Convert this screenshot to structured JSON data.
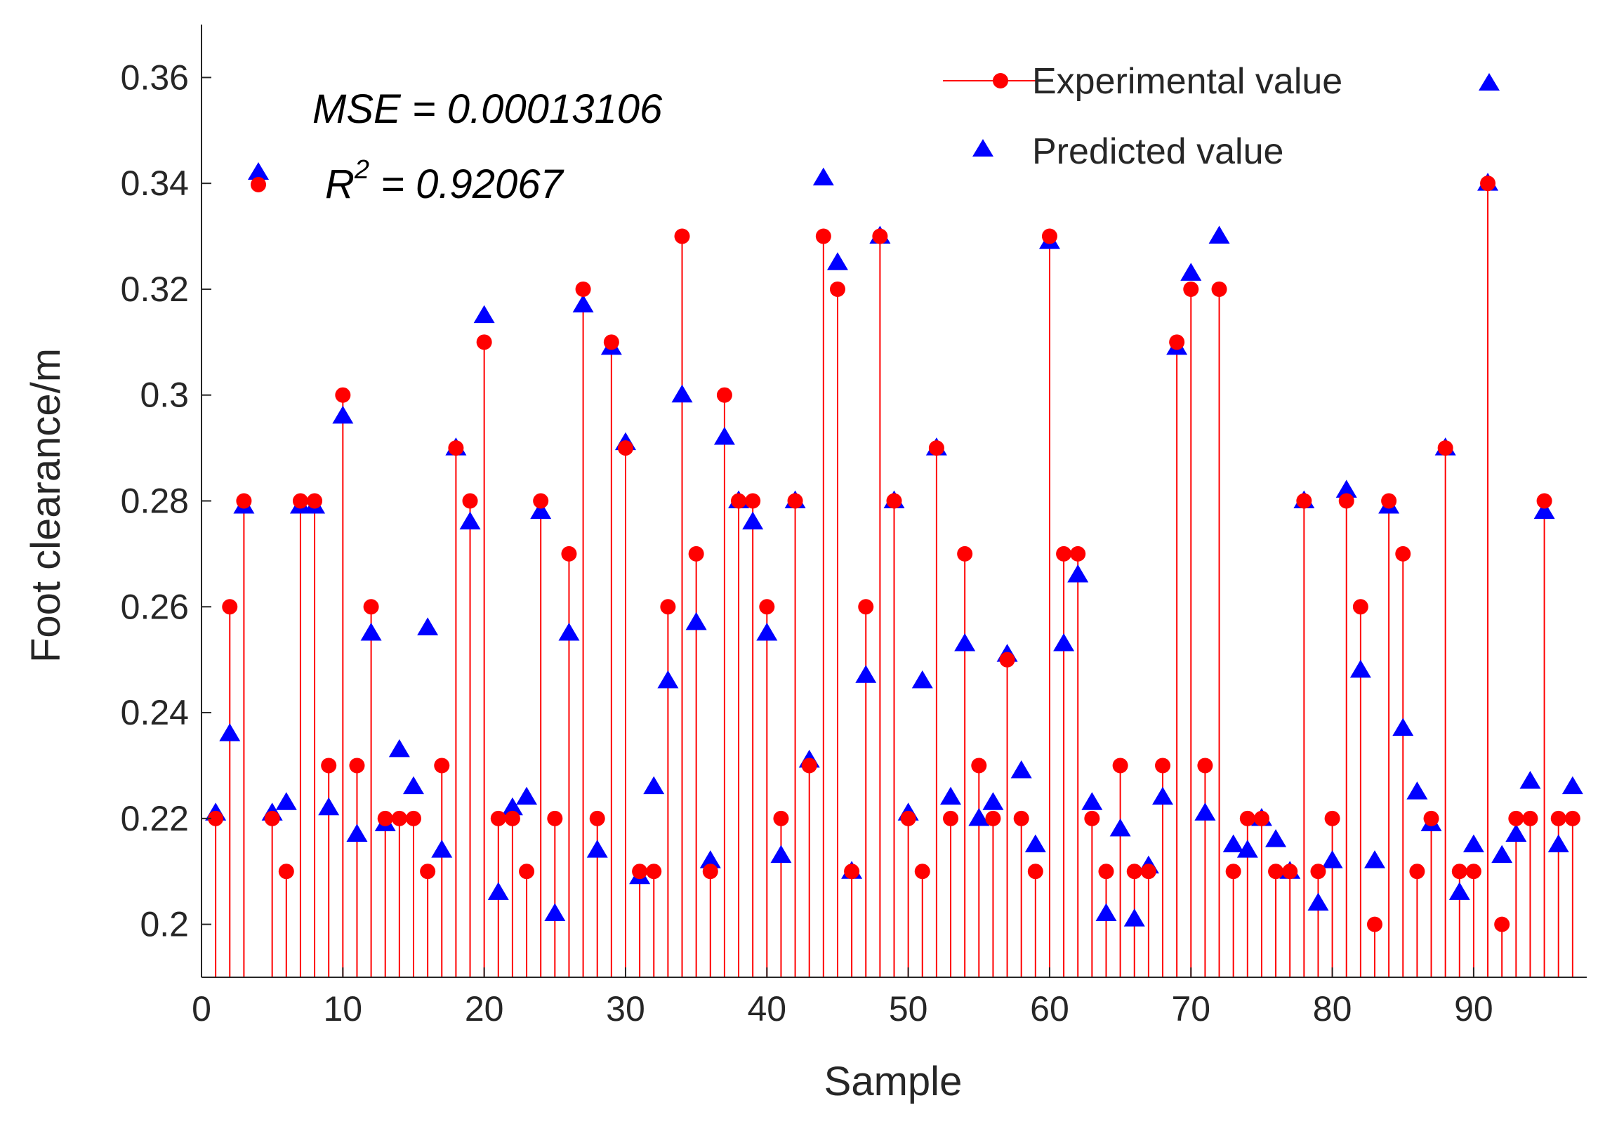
{
  "chart_data": {
    "type": "stem",
    "xlabel": "Sample",
    "ylabel": "Foot clearance/m",
    "xlim": [
      0,
      98
    ],
    "ylim": [
      0.19,
      0.37
    ],
    "xticks": [
      0,
      10,
      20,
      30,
      40,
      50,
      60,
      70,
      80,
      90
    ],
    "xtick_labels": [
      "0",
      "10",
      "20",
      "30",
      "40",
      "50",
      "60",
      "70",
      "80",
      "90"
    ],
    "yticks": [
      0.2,
      0.22,
      0.24,
      0.26,
      0.28,
      0.3,
      0.32,
      0.34,
      0.36
    ],
    "ytick_labels": [
      "0.2",
      "0.22",
      "0.24",
      "0.26",
      "0.28",
      "0.3",
      "0.32",
      "0.34",
      "0.36"
    ],
    "legend": {
      "position": "top-right",
      "entries": [
        {
          "label": "Experimental value",
          "color": "#ff0000",
          "marker": "circle"
        },
        {
          "label": "Predicted value",
          "color": "#0000ff",
          "marker": "triangle"
        }
      ]
    },
    "annotations": {
      "mse": "MSE = 0.00013106",
      "r2_prefix": "R",
      "r2_sup": "2",
      "r2_value": " = 0.92067"
    },
    "series": [
      {
        "name": "Experimental value",
        "style": "stem",
        "color": "#ff0000",
        "x": [
          1,
          2,
          3,
          5,
          6,
          7,
          8,
          9,
          10,
          11,
          12,
          13,
          14,
          15,
          16,
          17,
          18,
          19,
          20,
          21,
          22,
          23,
          24,
          25,
          26,
          27,
          28,
          29,
          30,
          31,
          32,
          33,
          34,
          35,
          36,
          37,
          38,
          39,
          40,
          41,
          42,
          43,
          44,
          45,
          46,
          47,
          48,
          49,
          50,
          51,
          52,
          53,
          54,
          55,
          56,
          57,
          58,
          59,
          60,
          61,
          62,
          63,
          64,
          65,
          66,
          67,
          68,
          69,
          70,
          71,
          72,
          73,
          74,
          75,
          76,
          77,
          78,
          79,
          80,
          81,
          82,
          83,
          84,
          85,
          86,
          87,
          88,
          89,
          90,
          91,
          92,
          93,
          94,
          95,
          96,
          97
        ],
        "y": [
          0.22,
          0.26,
          0.28,
          0.22,
          0.21,
          0.28,
          0.28,
          0.23,
          0.3,
          0.23,
          0.26,
          0.22,
          0.22,
          0.22,
          0.21,
          0.23,
          0.29,
          0.28,
          0.31,
          0.22,
          0.22,
          0.21,
          0.28,
          0.22,
          0.27,
          0.32,
          0.22,
          0.31,
          0.29,
          0.21,
          0.21,
          0.26,
          0.33,
          0.27,
          0.21,
          0.3,
          0.28,
          0.28,
          0.26,
          0.22,
          0.28,
          0.23,
          0.33,
          0.32,
          0.21,
          0.26,
          0.33,
          0.28,
          0.22,
          0.21,
          0.29,
          0.22,
          0.27,
          0.23,
          0.22,
          0.25,
          0.22,
          0.21,
          0.33,
          0.27,
          0.27,
          0.22,
          0.21,
          0.23,
          0.21,
          0.21,
          0.23,
          0.31,
          0.32,
          0.23,
          0.32,
          0.21,
          0.22,
          0.22,
          0.21,
          0.21,
          0.28,
          0.21,
          0.22,
          0.28,
          0.26,
          0.2,
          0.28,
          0.27,
          0.21,
          0.22,
          0.29,
          0.21,
          0.21,
          0.34,
          0.2,
          0.22,
          0.22,
          0.28,
          0.22,
          0.22
        ]
      },
      {
        "name": "Predicted value",
        "style": "marker",
        "color": "#0000ff",
        "x": [
          1,
          2,
          3,
          5,
          6,
          7,
          8,
          9,
          10,
          11,
          12,
          13,
          14,
          15,
          16,
          17,
          18,
          19,
          20,
          21,
          22,
          23,
          24,
          25,
          26,
          27,
          28,
          29,
          30,
          31,
          32,
          33,
          34,
          35,
          36,
          37,
          38,
          39,
          40,
          41,
          42,
          43,
          44,
          45,
          46,
          47,
          48,
          49,
          50,
          51,
          52,
          53,
          54,
          55,
          56,
          57,
          58,
          59,
          60,
          61,
          62,
          63,
          64,
          65,
          66,
          67,
          68,
          69,
          70,
          71,
          72,
          73,
          74,
          75,
          76,
          77,
          78,
          79,
          80,
          81,
          82,
          83,
          84,
          85,
          86,
          87,
          88,
          89,
          90,
          91,
          92,
          93,
          94,
          95,
          96,
          97
        ],
        "y": [
          0.221,
          0.236,
          0.279,
          0.221,
          0.223,
          0.279,
          0.279,
          0.222,
          0.296,
          0.217,
          0.255,
          0.219,
          0.233,
          0.226,
          0.256,
          0.214,
          0.29,
          0.276,
          0.315,
          0.206,
          0.222,
          0.224,
          0.278,
          0.202,
          0.255,
          0.317,
          0.214,
          0.309,
          0.291,
          0.209,
          0.226,
          0.246,
          0.3,
          0.257,
          0.212,
          0.292,
          0.28,
          0.276,
          0.255,
          0.213,
          0.28,
          0.231,
          0.341,
          0.325,
          0.21,
          0.247,
          0.33,
          0.28,
          0.221,
          0.246,
          0.29,
          0.224,
          0.253,
          0.22,
          0.223,
          0.251,
          0.229,
          0.215,
          0.329,
          0.253,
          0.266,
          0.223,
          0.202,
          0.218,
          0.201,
          0.211,
          0.224,
          0.309,
          0.323,
          0.221,
          0.33,
          0.215,
          0.214,
          0.22,
          0.216,
          0.21,
          0.28,
          0.204,
          0.212,
          0.282,
          0.248,
          0.212,
          0.279,
          0.237,
          0.225,
          0.219,
          0.29,
          0.206,
          0.215,
          0.34,
          0.213,
          0.217,
          0.227,
          0.278,
          0.215,
          0.226
        ]
      }
    ]
  }
}
